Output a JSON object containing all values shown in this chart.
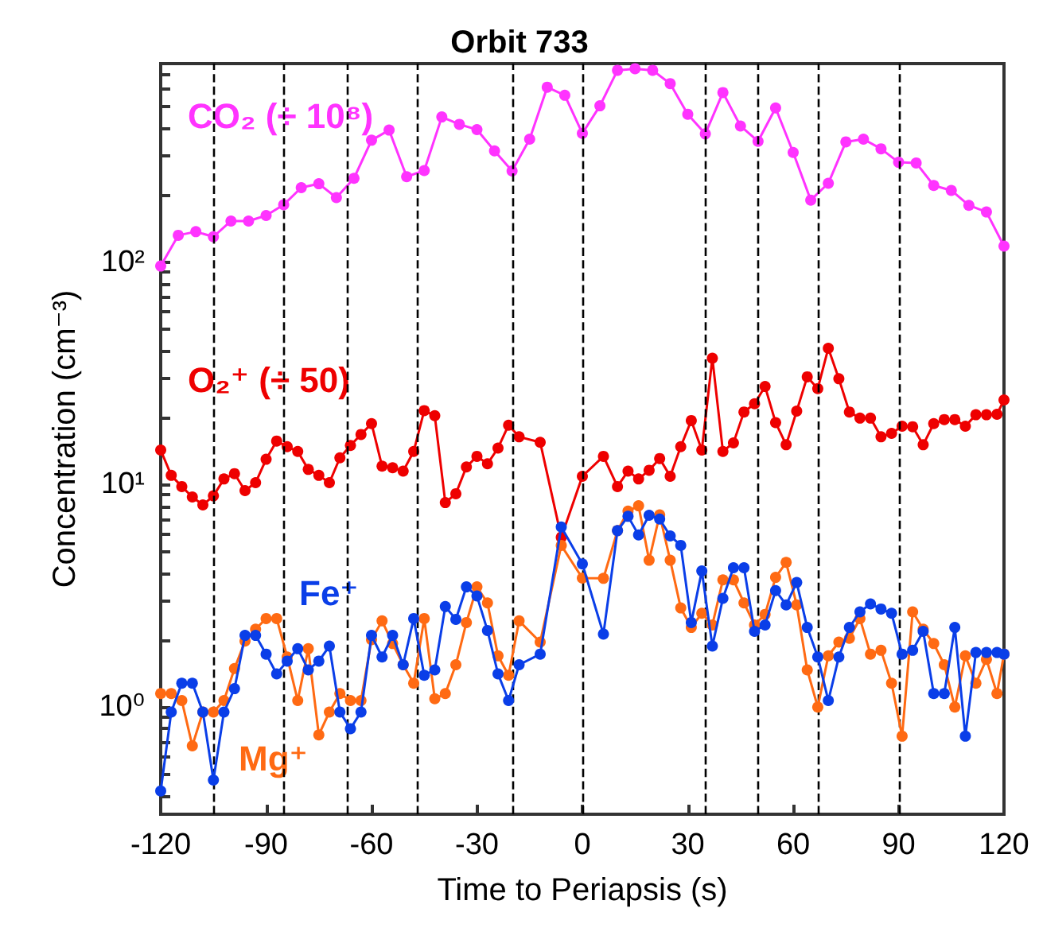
{
  "chart_data": {
    "type": "line",
    "title": "Orbit 733",
    "xlabel": "Time to Periapsis (s)",
    "ylabel": "Concentration (cm⁻³)",
    "x": [
      -120,
      -117,
      -114,
      -111,
      -108,
      -105,
      -102,
      -99,
      -96,
      -93,
      -90,
      -87,
      -84,
      -81,
      -78,
      -75,
      -72,
      -69,
      -66,
      -63,
      -60,
      -57,
      -54,
      -51,
      -48,
      -45,
      -42,
      -39,
      -36,
      -33,
      -30,
      -27,
      -24,
      -21,
      -18,
      -12,
      -6,
      0,
      6,
      10,
      13,
      16,
      19,
      22,
      25,
      28,
      31,
      34,
      37,
      40,
      43,
      46,
      49,
      52,
      55,
      58,
      61,
      64,
      67,
      70,
      73,
      76,
      79,
      82,
      85,
      88,
      91,
      94,
      97,
      100,
      103,
      106,
      109,
      112,
      115,
      118,
      120
    ],
    "series": [
      {
        "name": "CO₂ (÷ 10⁸)",
        "color": "#ff33ff",
        "x": [
          -120,
          -115,
          -110,
          -105,
          -100,
          -95,
          -90,
          -85,
          -80,
          -75,
          -70,
          -65,
          -60,
          -55,
          -50,
          -45,
          -40,
          -35,
          -30,
          -25,
          -20,
          -15,
          -10,
          -5,
          0,
          5,
          10,
          15,
          20,
          25,
          30,
          35,
          40,
          45,
          50,
          55,
          60,
          65,
          70,
          75,
          80,
          85,
          90,
          95,
          100,
          105,
          110,
          115,
          120
        ],
        "values": [
          96,
          132,
          137,
          130,
          153,
          153,
          162,
          181,
          216,
          225,
          195,
          238,
          353,
          392,
          242,
          258,
          449,
          416,
          394,
          316,
          257,
          357,
          611,
          562,
          379,
          504,
          728,
          740,
          728,
          634,
          462,
          377,
          578,
          409,
          349,
          493,
          311,
          190,
          226,
          347,
          357,
          323,
          281,
          279,
          221,
          210,
          180,
          168,
          118
        ]
      },
      {
        "name": "O₂⁺ (÷ 50)",
        "color": "#ee0000",
        "values": [
          14.3,
          11.0,
          9.8,
          8.8,
          8.1,
          8.9,
          10.6,
          11.2,
          9.4,
          10.2,
          13.0,
          15.7,
          14.8,
          14.1,
          11.7,
          11.0,
          10.2,
          13.2,
          15.0,
          16.8,
          18.8,
          12.1,
          11.9,
          11.5,
          14.1,
          21.5,
          20.4,
          8.3,
          9.1,
          12.0,
          13.4,
          12.4,
          14.6,
          18.5,
          16.4,
          15.5,
          5.8,
          10.9,
          13.4,
          9.8,
          11.5,
          10.6,
          11.6,
          13.1,
          10.9,
          14.8,
          19.4,
          14.3,
          37,
          14.1,
          15.4,
          21.2,
          23.1,
          27.6,
          19.0,
          15.1,
          21.4,
          30.5,
          27.0,
          41,
          29.9,
          21.2,
          19.9,
          19.9,
          16.4,
          17.0,
          18.3,
          18.2,
          15.1,
          18.8,
          19.6,
          19.6,
          18.3,
          20.6,
          20.6,
          20.7,
          24
        ]
      },
      {
        "name": "Mg⁺",
        "color": "#ff6a13",
        "values": [
          1.15,
          1.15,
          1.07,
          0.67,
          0.95,
          0.95,
          1.07,
          1.49,
          1.98,
          2.24,
          2.5,
          2.5,
          1.68,
          1.07,
          1.83,
          0.75,
          0.95,
          1.15,
          1.07,
          1.07,
          2.01,
          2.44,
          1.93,
          1.55,
          1.28,
          2.5,
          1.09,
          1.15,
          1.55,
          2.4,
          3.47,
          2.94,
          1.7,
          1.39,
          2.44,
          1.96,
          5.33,
          3.8,
          3.79,
          6.21,
          7.6,
          8.03,
          4.57,
          7.31,
          4.57,
          2.79,
          2.28,
          2.64,
          2.34,
          3.73,
          3.73,
          2.94,
          2.34,
          2.61,
          3.83,
          4.47,
          2.88,
          1.47,
          1.0,
          1.7,
          1.96,
          2.04,
          2.5,
          1.73,
          1.8,
          1.28,
          0.74,
          2.68,
          2.24,
          1.93,
          1.55,
          1.0,
          1.7,
          1.28,
          1.64,
          1.15,
          1.73
        ]
      },
      {
        "name": "Fe⁺",
        "color": "#0a3ee8",
        "values": [
          0.42,
          0.95,
          1.28,
          1.28,
          0.95,
          0.47,
          0.95,
          1.21,
          2.1,
          2.1,
          1.73,
          1.41,
          1.61,
          1.83,
          1.47,
          1.61,
          1.88,
          0.95,
          0.8,
          0.95,
          2.1,
          1.68,
          2.1,
          1.55,
          2.5,
          1.39,
          1.47,
          2.83,
          2.48,
          3.47,
          3.16,
          2.21,
          1.41,
          1.07,
          1.55,
          1.73,
          6.45,
          4.4,
          2.13,
          6.21,
          7.2,
          5.94,
          7.28,
          7.0,
          5.88,
          5.33,
          2.4,
          4.09,
          1.88,
          3.08,
          4.23,
          4.23,
          2.19,
          2.34,
          3.34,
          2.88,
          3.63,
          2.28,
          1.68,
          1.07,
          1.68,
          2.28,
          2.68,
          2.91,
          2.76,
          2.64,
          1.73,
          1.8,
          2.19,
          1.15,
          1.15,
          2.28,
          0.74,
          1.76,
          1.76,
          1.76,
          1.73
        ]
      }
    ],
    "xlim": [
      -120,
      120
    ],
    "xticks": [
      -120,
      -90,
      -60,
      -30,
      0,
      30,
      60,
      90,
      120
    ],
    "ylim": [
      0.33,
      780
    ],
    "log": "y",
    "yticks": [
      {
        "value": 0.4,
        "label": null
      },
      {
        "value": 0.5,
        "label": null
      },
      {
        "value": 0.6,
        "label": null
      },
      {
        "value": 0.7,
        "label": null
      },
      {
        "value": 0.8,
        "label": null
      },
      {
        "value": 0.9,
        "label": null
      },
      {
        "value": 1,
        "label": "10⁰"
      },
      {
        "value": 2,
        "label": null
      },
      {
        "value": 3,
        "label": null
      },
      {
        "value": 4,
        "label": null
      },
      {
        "value": 5,
        "label": null
      },
      {
        "value": 6,
        "label": null
      },
      {
        "value": 7,
        "label": null
      },
      {
        "value": 8,
        "label": null
      },
      {
        "value": 9,
        "label": null
      },
      {
        "value": 10,
        "label": "10¹"
      },
      {
        "value": 20,
        "label": null
      },
      {
        "value": 30,
        "label": null
      },
      {
        "value": 40,
        "label": null
      },
      {
        "value": 50,
        "label": null
      },
      {
        "value": 60,
        "label": null
      },
      {
        "value": 70,
        "label": null
      },
      {
        "value": 80,
        "label": null
      },
      {
        "value": 90,
        "label": null
      },
      {
        "value": 100,
        "label": "10²"
      },
      {
        "value": 200,
        "label": null
      },
      {
        "value": 300,
        "label": null
      },
      {
        "value": 400,
        "label": null
      },
      {
        "value": 500,
        "label": null
      },
      {
        "value": 600,
        "label": null
      },
      {
        "value": 700,
        "label": null
      }
    ],
    "ref_lines": [
      {
        "axis": "x",
        "value": -105,
        "color": "#000000",
        "line_style": "dashed"
      },
      {
        "axis": "x",
        "value": -85,
        "color": "#000000",
        "line_style": "dashed"
      },
      {
        "axis": "x",
        "value": -67,
        "color": "#000000",
        "line_style": "dashed"
      },
      {
        "axis": "x",
        "value": -47,
        "color": "#000000",
        "line_style": "dashed"
      },
      {
        "axis": "x",
        "value": -20,
        "color": "#000000",
        "line_style": "dashed"
      },
      {
        "axis": "x",
        "value": 0,
        "color": "#000000",
        "line_style": "dashed"
      },
      {
        "axis": "x",
        "value": 35,
        "color": "#000000",
        "line_style": "dashed"
      },
      {
        "axis": "x",
        "value": 50,
        "color": "#000000",
        "line_style": "dashed"
      },
      {
        "axis": "x",
        "value": 67,
        "color": "#000000",
        "line_style": "dashed"
      },
      {
        "axis": "x",
        "value": 90,
        "color": "#000000",
        "line_style": "dashed"
      }
    ],
    "grid": false,
    "legend": false,
    "marker": "circle",
    "line_style": "solid"
  }
}
